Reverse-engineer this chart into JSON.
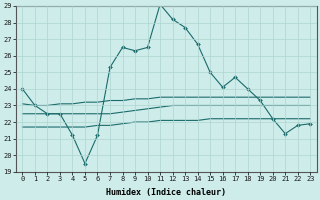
{
  "xlabel": "Humidex (Indice chaleur)",
  "ylabel": "",
  "xlim": [
    -0.5,
    23.5
  ],
  "ylim": [
    19,
    29
  ],
  "yticks": [
    19,
    20,
    21,
    22,
    23,
    24,
    25,
    26,
    27,
    28,
    29
  ],
  "xticks": [
    0,
    1,
    2,
    3,
    4,
    5,
    6,
    7,
    8,
    9,
    10,
    11,
    12,
    13,
    14,
    15,
    16,
    17,
    18,
    19,
    20,
    21,
    22,
    23
  ],
  "bg_color": "#ceecea",
  "line_color": "#1a6b6b",
  "grid_color": "#aed4d0",
  "line1_x": [
    0,
    1,
    2,
    3,
    4,
    5,
    6,
    7,
    8,
    9,
    10,
    11,
    12,
    13,
    14,
    15,
    16,
    17,
    18,
    19,
    20,
    21,
    22,
    23
  ],
  "line1_y": [
    24.0,
    23.0,
    22.5,
    22.5,
    21.2,
    19.5,
    21.2,
    25.3,
    26.5,
    26.3,
    26.5,
    29.1,
    28.2,
    27.7,
    26.7,
    25.0,
    24.1,
    24.7,
    24.0,
    23.3,
    22.2,
    21.3,
    21.8,
    21.9
  ],
  "line2_x": [
    0,
    1,
    2,
    3,
    4,
    5,
    6,
    7,
    8,
    9,
    10,
    11,
    12,
    13,
    14,
    15,
    16,
    17,
    18,
    19,
    20,
    21,
    22,
    23
  ],
  "line2_y": [
    23.1,
    23.0,
    23.0,
    23.1,
    23.1,
    23.2,
    23.2,
    23.3,
    23.3,
    23.4,
    23.4,
    23.5,
    23.5,
    23.5,
    23.5,
    23.5,
    23.5,
    23.5,
    23.5,
    23.5,
    23.5,
    23.5,
    23.5,
    23.5
  ],
  "line3_x": [
    0,
    1,
    2,
    3,
    4,
    5,
    6,
    7,
    8,
    9,
    10,
    11,
    12,
    13,
    14,
    15,
    16,
    17,
    18,
    19,
    20,
    21,
    22,
    23
  ],
  "line3_y": [
    22.5,
    22.5,
    22.5,
    22.5,
    22.5,
    22.5,
    22.5,
    22.5,
    22.6,
    22.7,
    22.8,
    22.9,
    23.0,
    23.0,
    23.0,
    23.0,
    23.0,
    23.0,
    23.0,
    23.0,
    23.0,
    23.0,
    23.0,
    23.0
  ],
  "line4_x": [
    0,
    1,
    2,
    3,
    4,
    5,
    6,
    7,
    8,
    9,
    10,
    11,
    12,
    13,
    14,
    15,
    16,
    17,
    18,
    19,
    20,
    21,
    22,
    23
  ],
  "line4_y": [
    21.7,
    21.7,
    21.7,
    21.7,
    21.7,
    21.7,
    21.8,
    21.8,
    21.9,
    22.0,
    22.0,
    22.1,
    22.1,
    22.1,
    22.1,
    22.2,
    22.2,
    22.2,
    22.2,
    22.2,
    22.2,
    22.2,
    22.2,
    22.2
  ]
}
